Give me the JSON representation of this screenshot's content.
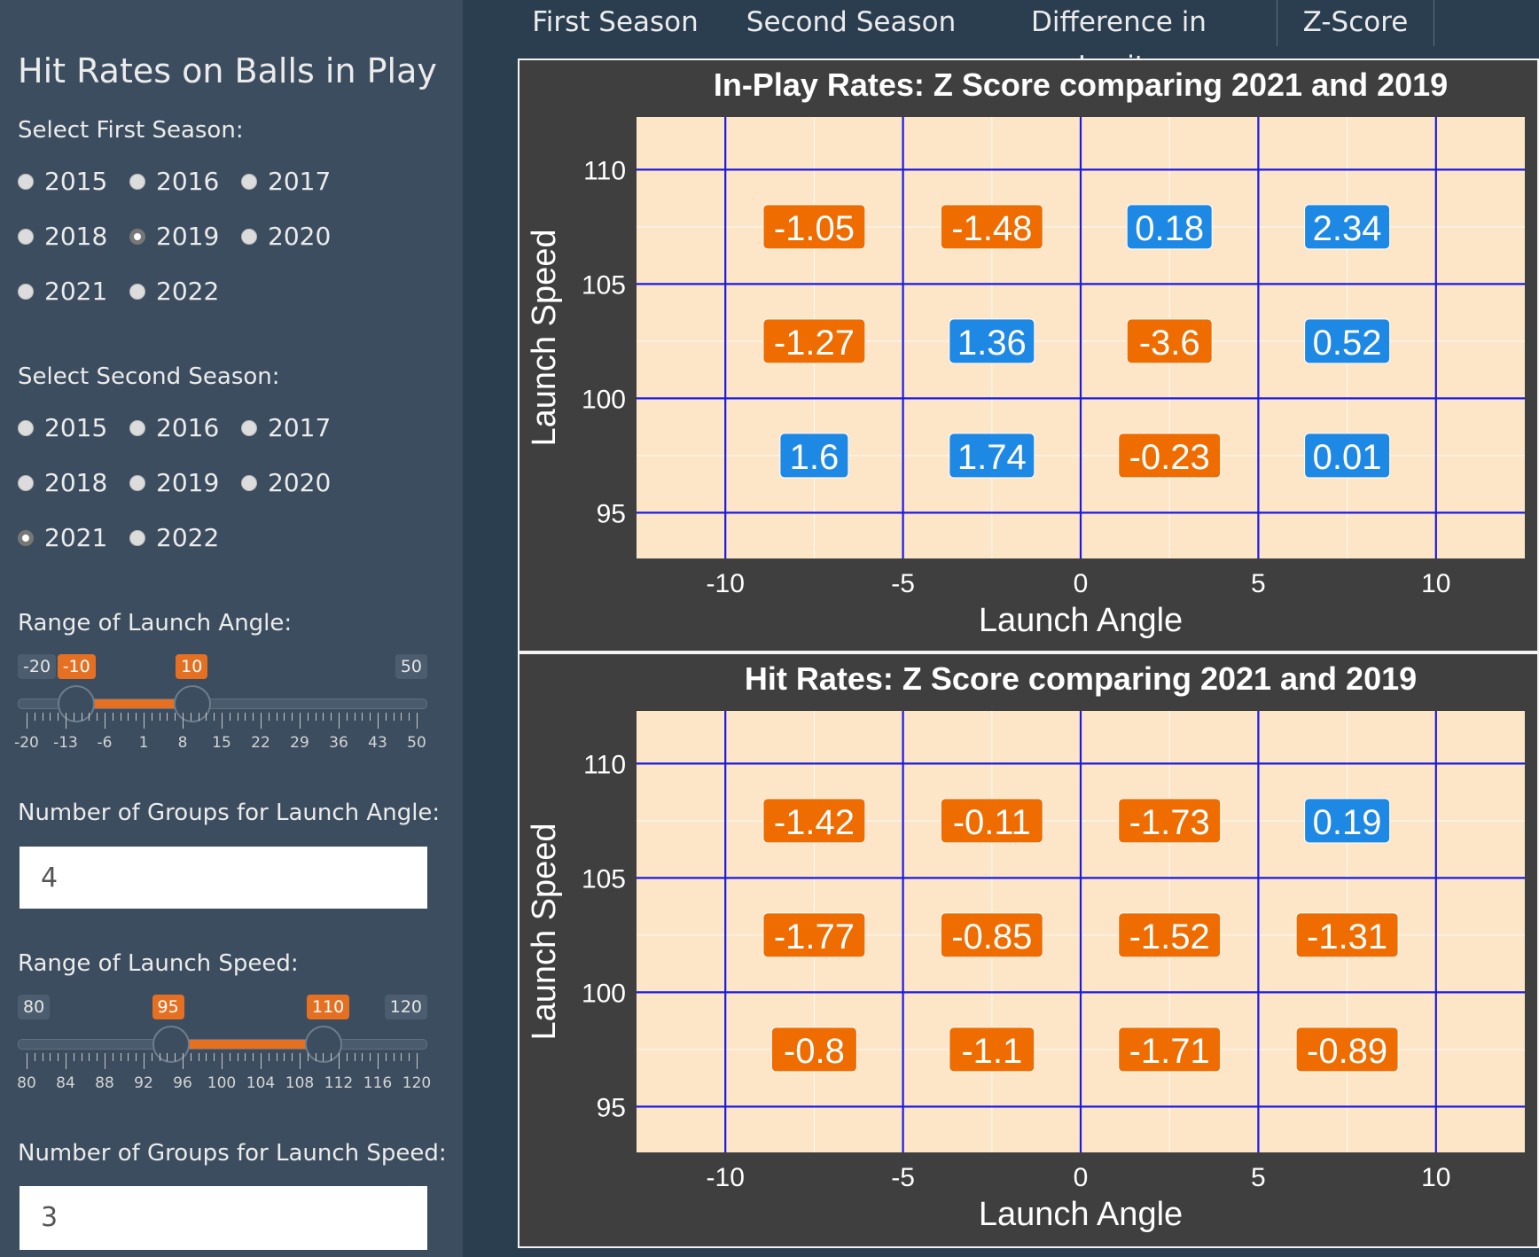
{
  "sidebar": {
    "title": "Hit Rates on Balls in Play",
    "first_season": {
      "label": "Select First Season:",
      "options": [
        "2015",
        "2016",
        "2017",
        "2018",
        "2019",
        "2020",
        "2021",
        "2022"
      ],
      "selected": "2019"
    },
    "second_season": {
      "label": "Select Second Season:",
      "options": [
        "2015",
        "2016",
        "2017",
        "2018",
        "2019",
        "2020",
        "2021",
        "2022"
      ],
      "selected": "2021"
    },
    "launch_angle": {
      "label": "Range of Launch Angle:",
      "min": "-20",
      "max": "50",
      "from": "-10",
      "to": "10",
      "tick_labels": [
        "-20",
        "-13",
        "-6",
        "1",
        "8",
        "15",
        "22",
        "29",
        "36",
        "43",
        "50"
      ]
    },
    "angle_groups": {
      "label": "Number of Groups for Launch Angle:",
      "value": "4"
    },
    "launch_speed": {
      "label": "Range of Launch Speed:",
      "min": "80",
      "max": "120",
      "from": "95",
      "to": "110",
      "tick_labels": [
        "80",
        "84",
        "88",
        "92",
        "96",
        "100",
        "104",
        "108",
        "112",
        "116",
        "120"
      ]
    },
    "speed_groups": {
      "label": "Number of Groups for Launch Speed:",
      "value": "3"
    }
  },
  "tabs": [
    {
      "label": "First Season",
      "active": false
    },
    {
      "label": "Second Season",
      "active": false
    },
    {
      "label": "Difference in Logits",
      "active": false
    },
    {
      "label": "Z-Score",
      "active": true
    }
  ],
  "colors": {
    "positive": "#1e88e5",
    "negative": "#ef6c00",
    "plot_bg": "#fde5c7",
    "grid": "#1a1ae6",
    "panel_bg": "#3f3f3f",
    "accent": "#e67022"
  },
  "chart_data": [
    {
      "type": "heatmap",
      "title": "In-Play Rates: Z Score comparing 2021 and 2019",
      "xlabel": "Launch Angle",
      "ylabel": "Launch Speed",
      "xlim": [
        -12.5,
        12.5
      ],
      "ylim": [
        93,
        112.3
      ],
      "x_ticks": [
        -10,
        -5,
        0,
        5,
        10
      ],
      "y_ticks": [
        95,
        100,
        105,
        110
      ],
      "x_centers": [
        -7.5,
        -2.5,
        2.5,
        7.5
      ],
      "y_centers": [
        107.5,
        102.5,
        97.5
      ],
      "values": [
        [
          -1.05,
          -1.48,
          0.18,
          2.34
        ],
        [
          -1.27,
          1.36,
          -3.6,
          0.52
        ],
        [
          1.6,
          1.74,
          -0.23,
          0.01
        ]
      ]
    },
    {
      "type": "heatmap",
      "title": "Hit Rates: Z Score comparing 2021 and 2019",
      "xlabel": "Launch Angle",
      "ylabel": "Launch Speed",
      "xlim": [
        -12.5,
        12.5
      ],
      "ylim": [
        93,
        112.3
      ],
      "x_ticks": [
        -10,
        -5,
        0,
        5,
        10
      ],
      "y_ticks": [
        95,
        100,
        105,
        110
      ],
      "x_centers": [
        -7.5,
        -2.5,
        2.5,
        7.5
      ],
      "y_centers": [
        107.5,
        102.5,
        97.5
      ],
      "values": [
        [
          -1.42,
          -0.11,
          -1.73,
          0.19
        ],
        [
          -1.77,
          -0.85,
          -1.52,
          -1.31
        ],
        [
          -0.8,
          -1.1,
          -1.71,
          -0.89
        ]
      ]
    }
  ]
}
